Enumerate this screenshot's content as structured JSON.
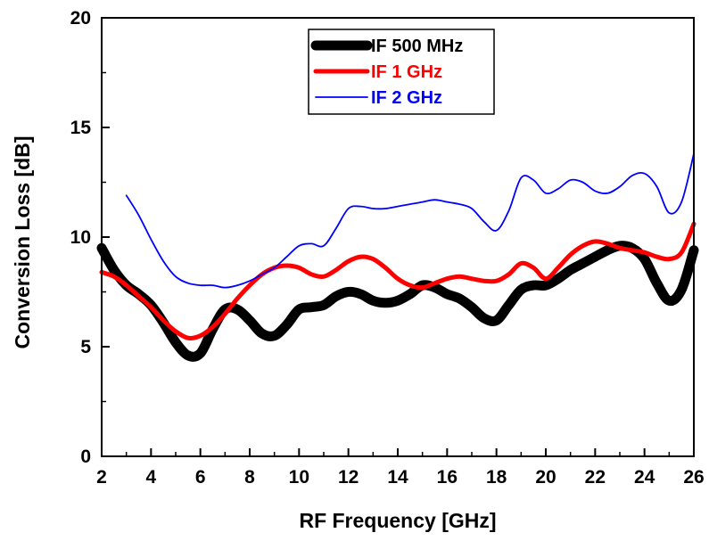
{
  "chart_data": {
    "type": "line",
    "xlabel": "RF Frequency [GHz]",
    "ylabel": "Conversion Loss [dB]",
    "xlim": [
      2,
      26
    ],
    "ylim": [
      0,
      20
    ],
    "xticks": [
      2,
      4,
      6,
      8,
      10,
      12,
      14,
      16,
      18,
      20,
      22,
      24,
      26
    ],
    "yticks": [
      0,
      5,
      10,
      15,
      20
    ],
    "grid": false,
    "legend_position": "top-center",
    "series": [
      {
        "name": "IF 500 MHz",
        "color": "#000000",
        "x": [
          2,
          2.5,
          3,
          3.5,
          4,
          4.5,
          5,
          5.5,
          6,
          6.5,
          7,
          7.5,
          8,
          8.5,
          9,
          9.5,
          10,
          10.5,
          11,
          11.5,
          12,
          12.5,
          13,
          13.5,
          14,
          14.5,
          15,
          15.5,
          16,
          16.5,
          17,
          17.5,
          18,
          18.5,
          19,
          19.5,
          20,
          20.5,
          21,
          21.5,
          22,
          22.5,
          23,
          23.5,
          24,
          24.5,
          25,
          25.5,
          26
        ],
        "y": [
          9.5,
          8.5,
          7.8,
          7.4,
          6.9,
          6.1,
          5.2,
          4.6,
          4.7,
          5.8,
          6.7,
          6.7,
          6.2,
          5.6,
          5.5,
          6.0,
          6.7,
          6.8,
          6.9,
          7.3,
          7.5,
          7.4,
          7.1,
          7.0,
          7.1,
          7.4,
          7.8,
          7.7,
          7.4,
          7.2,
          6.8,
          6.3,
          6.2,
          6.9,
          7.6,
          7.8,
          7.8,
          8.1,
          8.5,
          8.8,
          9.1,
          9.4,
          9.6,
          9.5,
          9.0,
          7.9,
          7.1,
          7.6,
          9.4
        ]
      },
      {
        "name": "IF 1 GHz",
        "color": "#ff0000",
        "x": [
          2,
          2.5,
          3,
          3.5,
          4,
          4.5,
          5,
          5.5,
          6,
          6.5,
          7,
          7.5,
          8,
          8.5,
          9,
          9.5,
          10,
          10.5,
          11,
          11.5,
          12,
          12.5,
          13,
          13.5,
          14,
          14.5,
          15,
          15.5,
          16,
          16.5,
          17,
          17.5,
          18,
          18.5,
          19,
          19.5,
          20,
          20.5,
          21,
          21.5,
          22,
          22.5,
          23,
          23.5,
          24,
          24.5,
          25,
          25.5,
          26
        ],
        "y": [
          8.4,
          8.2,
          7.8,
          7.3,
          6.8,
          6.2,
          5.7,
          5.4,
          5.5,
          5.9,
          6.5,
          7.2,
          7.8,
          8.3,
          8.6,
          8.7,
          8.6,
          8.3,
          8.2,
          8.5,
          8.9,
          9.1,
          9.0,
          8.6,
          8.1,
          7.8,
          7.7,
          7.9,
          8.1,
          8.2,
          8.1,
          8.0,
          8.0,
          8.3,
          8.8,
          8.6,
          8.1,
          8.6,
          9.2,
          9.6,
          9.8,
          9.7,
          9.5,
          9.4,
          9.3,
          9.1,
          9.0,
          9.3,
          10.6
        ]
      },
      {
        "name": "IF 2 GHz",
        "color": "#0000ff",
        "x": [
          3,
          3.5,
          4,
          4.5,
          5,
          5.5,
          6,
          6.5,
          7,
          7.5,
          8,
          8.5,
          9,
          9.5,
          10,
          10.5,
          11,
          11.5,
          12,
          12.5,
          13,
          13.5,
          14,
          14.5,
          15,
          15.5,
          16,
          16.5,
          17,
          17.5,
          18,
          18.5,
          19,
          19.5,
          20,
          20.5,
          21,
          21.5,
          22,
          22.5,
          23,
          23.5,
          24,
          24.5,
          25,
          25.5,
          26
        ],
        "y": [
          11.9,
          11.0,
          9.9,
          8.9,
          8.2,
          7.9,
          7.8,
          7.8,
          7.7,
          7.8,
          8.0,
          8.3,
          8.6,
          9.1,
          9.6,
          9.7,
          9.6,
          10.4,
          11.3,
          11.4,
          11.3,
          11.3,
          11.4,
          11.5,
          11.6,
          11.7,
          11.6,
          11.5,
          11.3,
          10.7,
          10.3,
          11.2,
          12.7,
          12.6,
          12.0,
          12.2,
          12.6,
          12.5,
          12.1,
          12.0,
          12.3,
          12.8,
          12.9,
          12.3,
          11.1,
          11.6,
          13.8
        ]
      }
    ]
  }
}
